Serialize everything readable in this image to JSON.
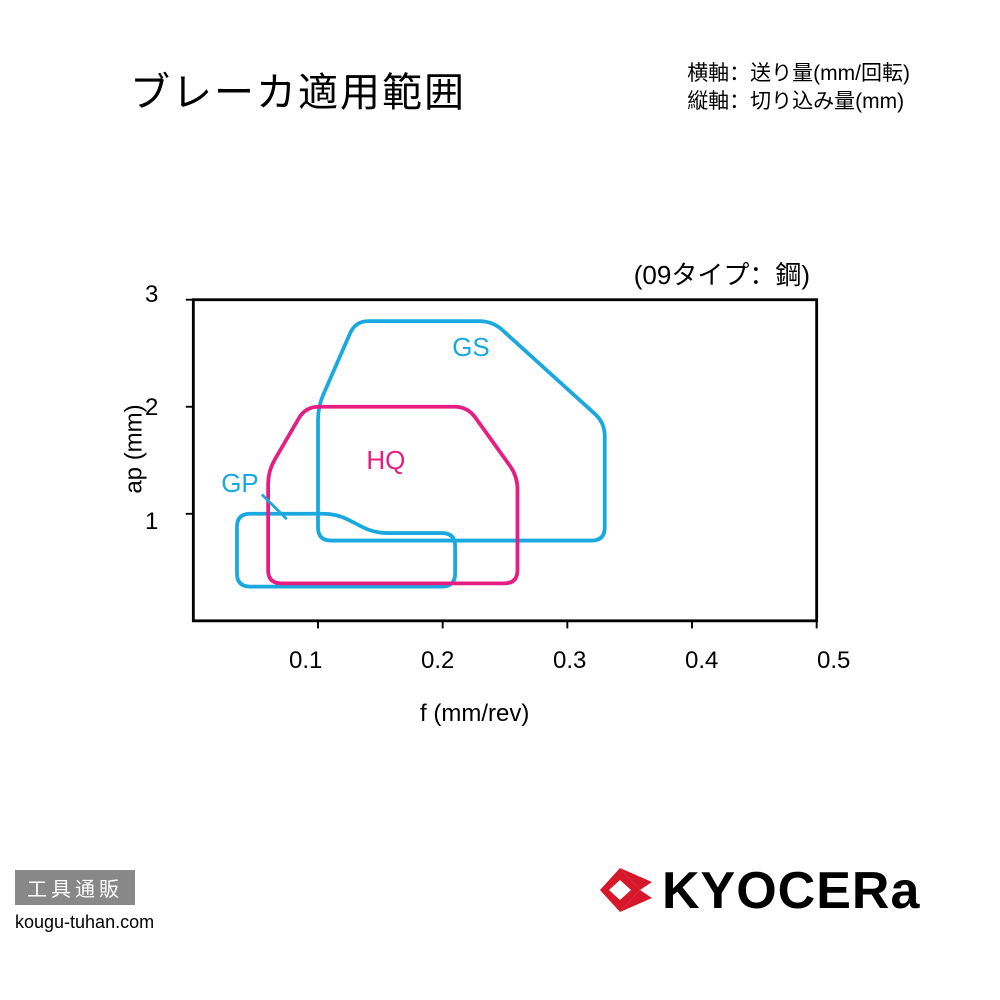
{
  "header": {
    "title": "ブレーカ適用範囲",
    "axis_legend_x": "横軸：送り量(mm/回転)",
    "axis_legend_y": "縦軸：切り込み量(mm)"
  },
  "subtitle": "(09タイプ：鋼)",
  "chart": {
    "type": "region-outline",
    "xlabel": "f (mm/rev)",
    "ylabel": "ap (mm)",
    "xlim": [
      0,
      0.5
    ],
    "ylim": [
      0,
      3
    ],
    "xticks": [
      0.1,
      0.2,
      0.3,
      0.4,
      0.5
    ],
    "yticks": [
      1,
      2,
      3
    ],
    "axis_color": "#000000",
    "axis_stroke": 3,
    "background_color": "#ffffff",
    "stroke_width": 4,
    "regions": {
      "GS": {
        "color": "#1aa8e0",
        "label": "GS",
        "label_pos_f": 0.21,
        "label_pos_ap": 2.55,
        "points": [
          [
            0.13,
            2.8
          ],
          [
            0.24,
            2.8
          ],
          [
            0.33,
            1.85
          ],
          [
            0.33,
            0.75
          ],
          [
            0.1,
            0.75
          ],
          [
            0.1,
            2.0
          ],
          [
            0.13,
            2.8
          ]
        ]
      },
      "HQ": {
        "color": "#e61d82",
        "label": "HQ",
        "label_pos_f": 0.145,
        "label_pos_ap": 1.55,
        "points": [
          [
            0.09,
            2.0
          ],
          [
            0.22,
            2.0
          ],
          [
            0.26,
            1.35
          ],
          [
            0.26,
            0.35
          ],
          [
            0.06,
            0.35
          ],
          [
            0.06,
            1.4
          ],
          [
            0.09,
            2.0
          ]
        ]
      },
      "GP": {
        "color": "#1aa8e0",
        "label": "GP",
        "label_pos_f": 0.035,
        "label_pos_ap": 1.35,
        "points": [
          [
            0.035,
            1.0
          ],
          [
            0.115,
            1.0
          ],
          [
            0.145,
            0.82
          ],
          [
            0.21,
            0.82
          ],
          [
            0.21,
            0.32
          ],
          [
            0.035,
            0.32
          ],
          [
            0.035,
            1.0
          ]
        ],
        "pointer_from": [
          0.055,
          1.18
        ],
        "pointer_to": [
          0.075,
          0.95
        ]
      }
    }
  },
  "footer": {
    "shop_badge": "工具通販",
    "shop_url": "kougu-tuhan.com",
    "logo_text": "KYOCERa",
    "logo_color": "#d7182a"
  }
}
